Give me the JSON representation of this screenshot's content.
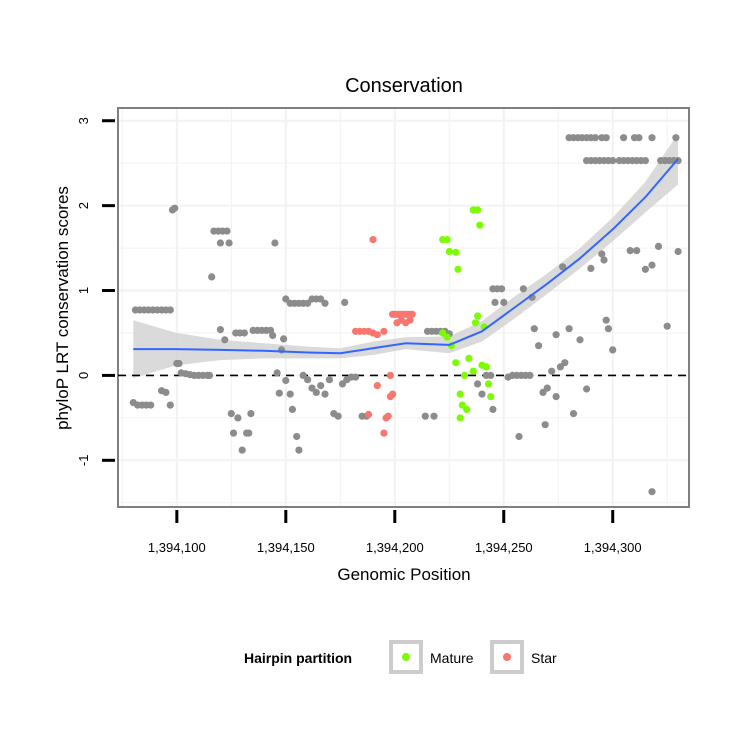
{
  "chart_data": {
    "type": "scatter",
    "title": "Conservation",
    "xlabel": "Genomic Position",
    "ylabel": "phyloP LRT conservation scores",
    "xlim": [
      1394073,
      1394335
    ],
    "ylim": [
      -1.55,
      3.15
    ],
    "x_ticks": [
      1394100,
      1394150,
      1394200,
      1394250,
      1394300
    ],
    "x_tick_labels": [
      "1,394,100",
      "1,394,150",
      "1,394,200",
      "1,394,250",
      "1,394,300"
    ],
    "y_ticks": [
      -1,
      0,
      1,
      2,
      3
    ],
    "y_tick_labels": [
      "-1",
      "0",
      "1",
      "2",
      "3"
    ],
    "reference_line": {
      "y": 0,
      "style": "dashed"
    },
    "legend": {
      "title": "Hairpin partition",
      "position": "bottom",
      "entries": [
        {
          "name": "Mature",
          "color": "#7cfc00"
        },
        {
          "name": "Star",
          "color": "#f8766d"
        }
      ]
    },
    "colors": {
      "other": "#8c8c8c",
      "Mature": "#7cfc00",
      "Star": "#f8766d",
      "smooth": "#3366ff",
      "band": "#d4d4d4"
    },
    "series": [
      {
        "name": "Other",
        "points": [
          [
            1394081,
            0.77
          ],
          [
            1394083,
            0.77
          ],
          [
            1394085,
            0.77
          ],
          [
            1394087,
            0.77
          ],
          [
            1394089,
            0.77
          ],
          [
            1394091,
            0.77
          ],
          [
            1394093,
            0.77
          ],
          [
            1394095,
            0.77
          ],
          [
            1394097,
            0.77
          ],
          [
            1394080,
            -0.32
          ],
          [
            1394082,
            -0.35
          ],
          [
            1394084,
            -0.35
          ],
          [
            1394086,
            -0.35
          ],
          [
            1394088,
            -0.35
          ],
          [
            1394093,
            -0.18
          ],
          [
            1394095,
            -0.2
          ],
          [
            1394097,
            -0.35
          ],
          [
            1394098,
            1.95
          ],
          [
            1394099,
            1.97
          ],
          [
            1394100,
            0.14
          ],
          [
            1394101,
            0.14
          ],
          [
            1394102,
            0.03
          ],
          [
            1394104,
            0.02
          ],
          [
            1394106,
            0.01
          ],
          [
            1394108,
            0.0
          ],
          [
            1394110,
            0.0
          ],
          [
            1394112,
            0.0
          ],
          [
            1394114,
            0.0
          ],
          [
            1394115,
            0.0
          ],
          [
            1394116,
            1.16
          ],
          [
            1394117,
            1.7
          ],
          [
            1394119,
            1.7
          ],
          [
            1394121,
            1.7
          ],
          [
            1394123,
            1.7
          ],
          [
            1394124,
            1.56
          ],
          [
            1394120,
            1.56
          ],
          [
            1394120,
            0.54
          ],
          [
            1394122,
            0.42
          ],
          [
            1394125,
            -0.45
          ],
          [
            1394126,
            -0.68
          ],
          [
            1394127,
            0.5
          ],
          [
            1394129,
            0.5
          ],
          [
            1394131,
            0.5
          ],
          [
            1394128,
            -0.5
          ],
          [
            1394130,
            -0.88
          ],
          [
            1394132,
            -0.68
          ],
          [
            1394133,
            -0.68
          ],
          [
            1394134,
            -0.45
          ],
          [
            1394135,
            0.53
          ],
          [
            1394137,
            0.53
          ],
          [
            1394139,
            0.53
          ],
          [
            1394141,
            0.53
          ],
          [
            1394143,
            0.53
          ],
          [
            1394144,
            0.47
          ],
          [
            1394145,
            1.56
          ],
          [
            1394146,
            0.03
          ],
          [
            1394147,
            -0.21
          ],
          [
            1394148,
            0.3
          ],
          [
            1394149,
            0.43
          ],
          [
            1394150,
            -0.06
          ],
          [
            1394152,
            -0.22
          ],
          [
            1394153,
            -0.4
          ],
          [
            1394150,
            0.9
          ],
          [
            1394152,
            0.85
          ],
          [
            1394154,
            0.85
          ],
          [
            1394156,
            0.85
          ],
          [
            1394158,
            0.85
          ],
          [
            1394160,
            0.85
          ],
          [
            1394162,
            0.9
          ],
          [
            1394164,
            0.9
          ],
          [
            1394166,
            0.9
          ],
          [
            1394168,
            0.85
          ],
          [
            1394155,
            -0.72
          ],
          [
            1394156,
            -0.88
          ],
          [
            1394158,
            0.0
          ],
          [
            1394160,
            -0.05
          ],
          [
            1394162,
            -0.15
          ],
          [
            1394164,
            -0.2
          ],
          [
            1394166,
            -0.12
          ],
          [
            1394168,
            -0.22
          ],
          [
            1394170,
            -0.05
          ],
          [
            1394172,
            -0.45
          ],
          [
            1394174,
            -0.48
          ],
          [
            1394176,
            -0.1
          ],
          [
            1394178,
            -0.05
          ],
          [
            1394180,
            -0.02
          ],
          [
            1394182,
            -0.02
          ],
          [
            1394177,
            0.86
          ],
          [
            1394185,
            -0.48
          ],
          [
            1394187,
            -0.48
          ],
          [
            1394215,
            0.52
          ],
          [
            1394217,
            0.52
          ],
          [
            1394219,
            0.52
          ],
          [
            1394221,
            0.52
          ],
          [
            1394223,
            0.52
          ],
          [
            1394225,
            0.49
          ],
          [
            1394214,
            -0.48
          ],
          [
            1394218,
            -0.48
          ],
          [
            1394238,
            -0.1
          ],
          [
            1394240,
            -0.22
          ],
          [
            1394242,
            0.0
          ],
          [
            1394244,
            0.0
          ],
          [
            1394245,
            -0.4
          ],
          [
            1394246,
            0.86
          ],
          [
            1394245,
            1.02
          ],
          [
            1394247,
            1.02
          ],
          [
            1394249,
            1.02
          ],
          [
            1394250,
            0.86
          ],
          [
            1394252,
            -0.02
          ],
          [
            1394254,
            0.0
          ],
          [
            1394256,
            0.0
          ],
          [
            1394258,
            0.0
          ],
          [
            1394260,
            0.0
          ],
          [
            1394262,
            0.0
          ],
          [
            1394257,
            -0.72
          ],
          [
            1394259,
            1.02
          ],
          [
            1394263,
            0.92
          ],
          [
            1394264,
            0.55
          ],
          [
            1394266,
            0.35
          ],
          [
            1394268,
            -0.2
          ],
          [
            1394269,
            -0.58
          ],
          [
            1394270,
            -0.15
          ],
          [
            1394272,
            0.05
          ],
          [
            1394274,
            -0.25
          ],
          [
            1394274,
            0.48
          ],
          [
            1394276,
            0.1
          ],
          [
            1394278,
            0.15
          ],
          [
            1394280,
            0.55
          ],
          [
            1394277,
            1.28
          ],
          [
            1394282,
            -0.45
          ],
          [
            1394285,
            0.42
          ],
          [
            1394288,
            -0.16
          ],
          [
            1394290,
            1.26
          ],
          [
            1394295,
            1.43
          ],
          [
            1394296,
            1.36
          ],
          [
            1394297,
            0.65
          ],
          [
            1394298,
            0.55
          ],
          [
            1394300,
            0.3
          ],
          [
            1394300,
            2.53
          ],
          [
            1394303,
            2.53
          ],
          [
            1394305,
            2.53
          ],
          [
            1394307,
            2.53
          ],
          [
            1394309,
            2.53
          ],
          [
            1394311,
            2.53
          ],
          [
            1394313,
            2.53
          ],
          [
            1394315,
            2.53
          ],
          [
            1394308,
            1.47
          ],
          [
            1394311,
            1.47
          ],
          [
            1394315,
            1.25
          ],
          [
            1394318,
            1.3
          ],
          [
            1394321,
            1.52
          ],
          [
            1394325,
            0.58
          ],
          [
            1394330,
            1.46
          ],
          [
            1394318,
            -1.37
          ],
          [
            1394280,
            2.8
          ],
          [
            1394282,
            2.8
          ],
          [
            1394284,
            2.8
          ],
          [
            1394286,
            2.8
          ],
          [
            1394288,
            2.8
          ],
          [
            1394290,
            2.8
          ],
          [
            1394292,
            2.8
          ],
          [
            1394288,
            2.53
          ],
          [
            1394290,
            2.53
          ],
          [
            1394292,
            2.53
          ],
          [
            1394294,
            2.53
          ],
          [
            1394296,
            2.53
          ],
          [
            1394298,
            2.53
          ],
          [
            1394295,
            2.8
          ],
          [
            1394297,
            2.8
          ],
          [
            1394305,
            2.8
          ],
          [
            1394310,
            2.8
          ],
          [
            1394312,
            2.8
          ],
          [
            1394318,
            2.8
          ],
          [
            1394322,
            2.53
          ],
          [
            1394324,
            2.53
          ],
          [
            1394326,
            2.53
          ],
          [
            1394328,
            2.53
          ],
          [
            1394330,
            2.53
          ],
          [
            1394329,
            2.8
          ]
        ]
      },
      {
        "name": "Star",
        "points": [
          [
            1394182,
            0.52
          ],
          [
            1394184,
            0.52
          ],
          [
            1394186,
            0.52
          ],
          [
            1394188,
            0.52
          ],
          [
            1394190,
            0.5
          ],
          [
            1394192,
            0.48
          ],
          [
            1394195,
            0.52
          ],
          [
            1394199,
            0.72
          ],
          [
            1394200,
            0.72
          ],
          [
            1394201,
            0.72
          ],
          [
            1394202,
            0.72
          ],
          [
            1394203,
            0.72
          ],
          [
            1394204,
            0.72
          ],
          [
            1394205,
            0.72
          ],
          [
            1394206,
            0.72
          ],
          [
            1394207,
            0.72
          ],
          [
            1394208,
            0.72
          ],
          [
            1394201,
            0.62
          ],
          [
            1394203,
            0.65
          ],
          [
            1394205,
            0.62
          ],
          [
            1394207,
            0.65
          ],
          [
            1394190,
            1.6
          ],
          [
            1394188,
            -0.46
          ],
          [
            1394192,
            -0.12
          ],
          [
            1394195,
            -0.68
          ],
          [
            1394196,
            -0.5
          ],
          [
            1394197,
            -0.48
          ],
          [
            1394198,
            -0.25
          ],
          [
            1394199,
            -0.22
          ],
          [
            1394198,
            0.0
          ]
        ]
      },
      {
        "name": "Mature",
        "points": [
          [
            1394222,
            1.6
          ],
          [
            1394224,
            1.6
          ],
          [
            1394225,
            1.46
          ],
          [
            1394228,
            1.45
          ],
          [
            1394229,
            1.25
          ],
          [
            1394236,
            1.95
          ],
          [
            1394238,
            1.95
          ],
          [
            1394239,
            1.77
          ],
          [
            1394222,
            0.5
          ],
          [
            1394224,
            0.45
          ],
          [
            1394226,
            0.35
          ],
          [
            1394228,
            0.15
          ],
          [
            1394230,
            -0.22
          ],
          [
            1394231,
            -0.35
          ],
          [
            1394232,
            0.0
          ],
          [
            1394233,
            -0.4
          ],
          [
            1394234,
            0.2
          ],
          [
            1394236,
            0.05
          ],
          [
            1394237,
            0.62
          ],
          [
            1394238,
            0.7
          ],
          [
            1394240,
            0.12
          ],
          [
            1394241,
            0.57
          ],
          [
            1394242,
            0.1
          ],
          [
            1394243,
            -0.1
          ],
          [
            1394244,
            -0.25
          ],
          [
            1394230,
            -0.5
          ]
        ]
      }
    ],
    "smooth": {
      "method": "loess",
      "x": [
        1394080,
        1394100,
        1394120,
        1394140,
        1394160,
        1394175,
        1394190,
        1394205,
        1394225,
        1394240,
        1394255,
        1394270,
        1394285,
        1394300,
        1394315,
        1394330
      ],
      "y": [
        0.31,
        0.31,
        0.3,
        0.29,
        0.27,
        0.26,
        0.32,
        0.38,
        0.36,
        0.52,
        0.8,
        1.08,
        1.38,
        1.72,
        2.1,
        2.55
      ],
      "band_upper": [
        0.65,
        0.5,
        0.42,
        0.38,
        0.34,
        0.32,
        0.4,
        0.45,
        0.46,
        0.64,
        0.93,
        1.2,
        1.5,
        1.86,
        2.28,
        2.85
      ],
      "band_lower": [
        -0.03,
        0.12,
        0.18,
        0.2,
        0.2,
        0.2,
        0.24,
        0.31,
        0.26,
        0.4,
        0.67,
        0.96,
        1.26,
        1.58,
        1.92,
        2.25
      ]
    }
  }
}
